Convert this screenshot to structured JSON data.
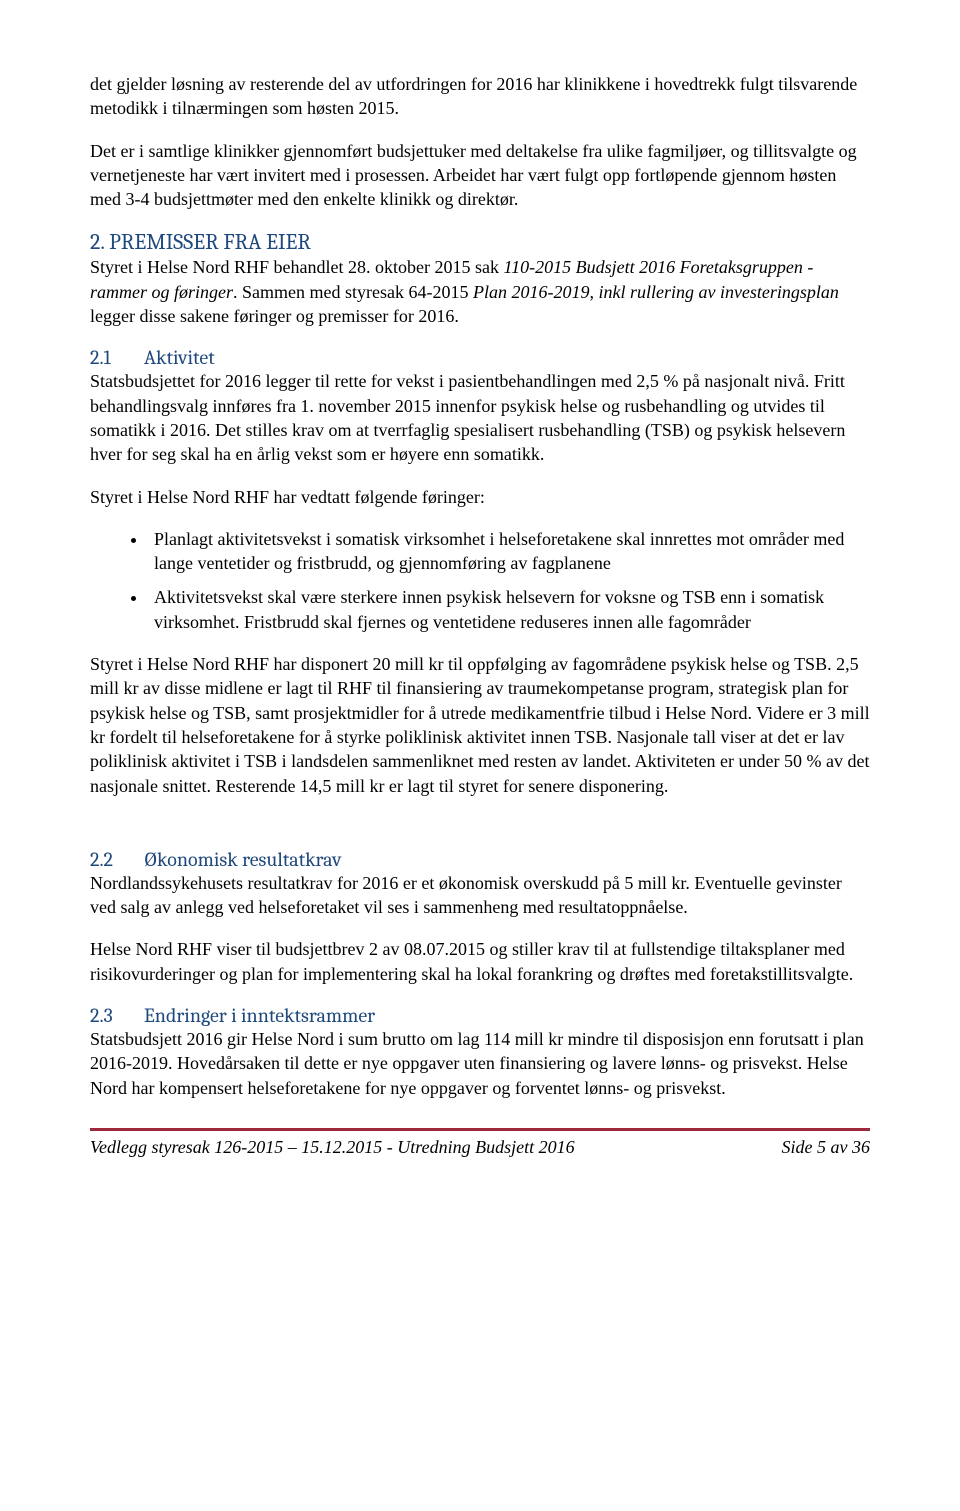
{
  "colors": {
    "heading": "#1f497d",
    "rule": "#9c2a3a",
    "text": "#000000",
    "background": "#ffffff"
  },
  "typography": {
    "body_family": "Times New Roman",
    "body_size_pt": 12,
    "heading_family": "Cambria",
    "heading2_size_pt": 15,
    "heading3_size_pt": 14
  },
  "p1": "det gjelder løsning av resterende del av utfordringen for 2016 har klinikkene i hovedtrekk fulgt tilsvarende metodikk i tilnærmingen som høsten 2015.",
  "p2": "Det er i samtlige klinikker gjennomført budsjettuker med deltakelse fra ulike fagmiljøer, og tillitsvalgte og vernetjeneste har vært invitert med i prosessen. Arbeidet har vært fulgt opp fortløpende gjennom høsten med 3-4 budsjettmøter med den enkelte klinikk og direktør.",
  "h2_num": "2.",
  "h2_text": "PREMISSER FRA EIER",
  "p3a": "Styret i Helse Nord RHF behandlet 28. oktober 2015 sak ",
  "p3i1": "110-2015 Budsjett 2016 Foretaksgruppen - rammer og føringer",
  "p3b": ". Sammen med styresak 64-2015 ",
  "p3i2": "Plan 2016-2019, inkl rullering av investeringsplan",
  "p3c": " legger disse sakene føringer og premisser for 2016.",
  "h21_num": "2.1",
  "h21_text": "Aktivitet",
  "p4": "Statsbudsjettet for 2016 legger til rette for vekst i pasientbehandlingen med 2,5 % på nasjonalt nivå. Fritt behandlingsvalg innføres fra 1. november 2015 innenfor psykisk helse og rusbehandling og utvides til somatikk i 2016. Det stilles krav om at tverrfaglig spesialisert rusbehandling (TSB) og psykisk helsevern hver for seg skal ha en årlig vekst som er høyere enn somatikk.",
  "p5": "Styret i Helse Nord RHF har vedtatt følgende føringer:",
  "bullets": [
    "Planlagt aktivitetsvekst i somatisk virksomhet i helseforetakene skal innrettes mot områder med lange ventetider og fristbrudd, og gjennomføring av fagplanene",
    "Aktivitetsvekst skal være sterkere innen psykisk helsevern for voksne og TSB enn i somatisk virksomhet. Fristbrudd skal fjernes og ventetidene reduseres innen alle fagområder"
  ],
  "p6": "Styret i Helse Nord RHF har disponert 20 mill kr til oppfølging av fagområdene psykisk helse og TSB. 2,5 mill kr av disse midlene er lagt til RHF til finansiering av traumekompetanse program, strategisk plan for psykisk helse og TSB, samt prosjektmidler for å utrede medikamentfrie tilbud i Helse Nord. Videre er 3 mill kr fordelt til helseforetakene for å styrke poliklinisk aktivitet innen TSB. Nasjonale tall viser at det er lav poliklinisk aktivitet i TSB i landsdelen sammenliknet med resten av landet. Aktiviteten er under 50 % av det nasjonale snittet. Resterende 14,5 mill kr er lagt til styret for senere disponering.",
  "h22_num": "2.2",
  "h22_text": "Økonomisk resultatkrav",
  "p7": "Nordlandssykehusets resultatkrav for 2016 er et økonomisk overskudd på 5 mill kr. Eventuelle gevinster ved salg av anlegg ved helseforetaket vil ses i sammenheng med resultatoppnåelse.",
  "p8": "Helse Nord RHF viser til budsjettbrev 2 av 08.07.2015 og stiller krav til at fullstendige tiltaksplaner med risikovurderinger og plan for implementering skal ha lokal forankring og drøftes med foretakstillitsvalgte.",
  "h23_num": "2.3",
  "h23_text": "Endringer i inntektsrammer",
  "p9": "Statsbudsjett 2016 gir Helse Nord i sum brutto om lag 114 mill kr mindre til disposisjon enn forutsatt i plan 2016-2019. Hovedårsaken til dette er nye oppgaver uten finansiering og lavere lønns- og prisvekst. Helse Nord har kompensert helseforetakene for nye oppgaver og forventet lønns- og prisvekst.",
  "footer_left": "Vedlegg styresak 126-2015 – 15.12.2015 - Utredning Budsjett 2016",
  "footer_right": "Side 5 av 36"
}
